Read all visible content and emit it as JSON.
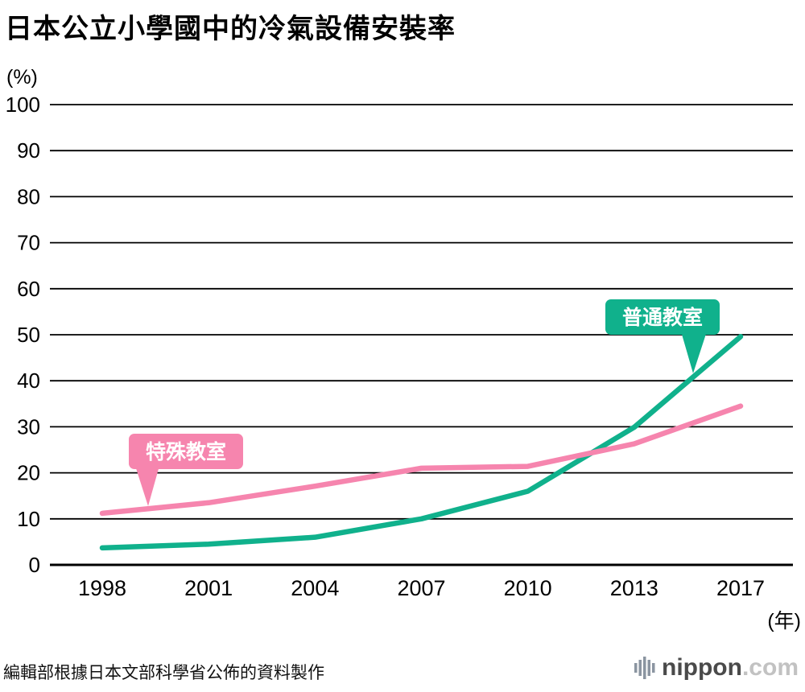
{
  "title": "日本公立小學國中的冷氣設備安裝率",
  "y_axis_unit": "(%)",
  "x_axis_unit": "(年)",
  "footer": {
    "source_note": "編輯部根據日本文部科學省公佈的資料製作",
    "brand": {
      "name": "nippon",
      "tld": ".com"
    }
  },
  "chart_data": {
    "type": "line",
    "title": "日本公立小學國中的冷氣設備安裝率",
    "xlabel": "年",
    "ylabel": "%",
    "ylim": [
      0,
      100
    ],
    "y_ticks": [
      0,
      10,
      20,
      30,
      40,
      50,
      60,
      70,
      80,
      90,
      100
    ],
    "grid": "horizontal",
    "legend_position": "inline-callouts",
    "categories": [
      "1998",
      "2001",
      "2004",
      "2007",
      "2010",
      "2013",
      "2017"
    ],
    "series": [
      {
        "name": "普通教室",
        "color": "#10b18c",
        "values": [
          3.7,
          4.5,
          6.0,
          10.0,
          16.0,
          29.9,
          49.6
        ]
      },
      {
        "name": "特殊教室",
        "color": "#f685ae",
        "values": [
          11.2,
          13.5,
          17.1,
          21.0,
          21.4,
          26.3,
          34.5
        ]
      }
    ],
    "annotations": [
      {
        "text": "普通教室",
        "series": "普通教室"
      },
      {
        "text": "特殊教室",
        "series": "特殊教室"
      }
    ]
  }
}
